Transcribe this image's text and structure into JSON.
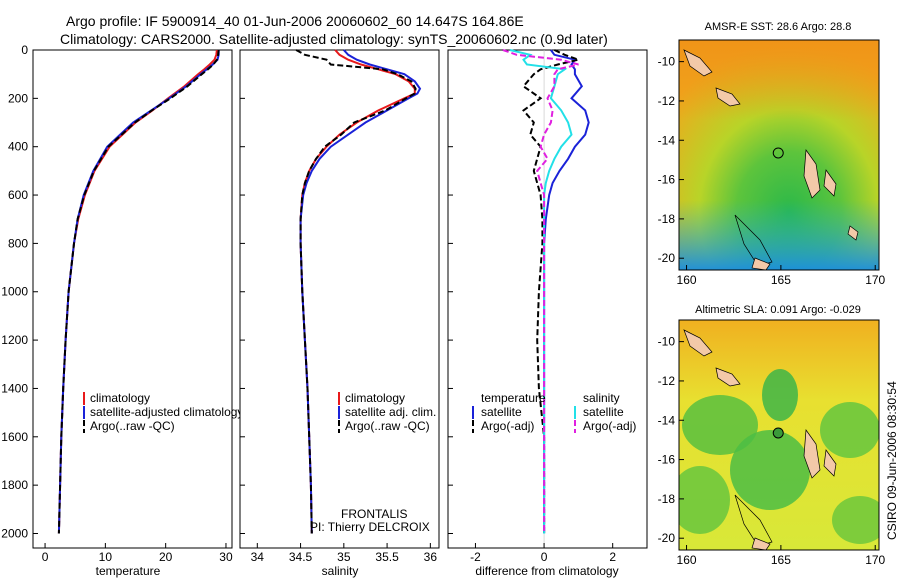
{
  "header": {
    "line1": "Argo profile: IF 5900914_40 01-Jun-2006 20060602_60 14.647S 164.86E",
    "line2": "Climatology: CARS2000. Satellite-adjusted climatology: synTS_20060602.nc (0.9d later)"
  },
  "side_stamp": "CSIRO 09-Jun-2006 08:30:54",
  "colors": {
    "climatology": "#e8191b",
    "satellite": "#1a22d8",
    "argo": "#000000",
    "satellite_diff": "#22e0e8",
    "argo_adj_diff": "#e020e0"
  },
  "chart_data": [
    {
      "type": "line",
      "name": "temperature-profile",
      "xlabel": "temperature",
      "ylabel": "",
      "xlim": [
        -2,
        31
      ],
      "ylim": [
        2060,
        0
      ],
      "xticks": [
        0,
        10,
        20,
        30
      ],
      "yticks": [
        0,
        200,
        400,
        600,
        800,
        1000,
        1200,
        1400,
        1600,
        1800,
        2000
      ],
      "depth": [
        0,
        20,
        40,
        60,
        80,
        100,
        150,
        200,
        250,
        300,
        400,
        500,
        600,
        700,
        800,
        1000,
        1200,
        1400,
        1600,
        1800,
        2000
      ],
      "series": [
        {
          "name": "climatology",
          "values": [
            28.5,
            28.4,
            28.1,
            27.3,
            26.4,
            25.4,
            23.1,
            20.4,
            17.8,
            15.0,
            10.7,
            8.2,
            6.6,
            5.5,
            4.8,
            3.9,
            3.4,
            3.0,
            2.7,
            2.5,
            2.3
          ]
        },
        {
          "name": "satellite-adjusted climatology",
          "values": [
            28.8,
            28.8,
            28.6,
            27.8,
            26.8,
            25.8,
            23.4,
            20.6,
            17.6,
            14.6,
            10.3,
            8.0,
            6.4,
            5.4,
            4.8,
            3.9,
            3.4,
            3.0,
            2.7,
            2.5,
            2.3
          ]
        },
        {
          "name": "Argo(..raw -QC)",
          "values": [
            28.8,
            28.7,
            28.5,
            27.9,
            27.0,
            26.0,
            23.6,
            20.8,
            17.7,
            14.9,
            10.5,
            8.1,
            6.5,
            5.4,
            4.8,
            3.9,
            3.4,
            3.0,
            2.7,
            2.5,
            2.3
          ]
        }
      ],
      "legend": {
        "position": "lower-right",
        "entries": [
          "climatology",
          "satellite-adjusted climatology",
          "Argo(..raw -QC)"
        ]
      }
    },
    {
      "type": "line",
      "name": "salinity-profile",
      "xlabel": "salinity",
      "xlim": [
        33.8,
        36.1
      ],
      "ylim": [
        2060,
        0
      ],
      "xticks": [
        34,
        34.5,
        35,
        35.5,
        36
      ],
      "depth": [
        0,
        20,
        40,
        60,
        80,
        100,
        130,
        160,
        180,
        200,
        250,
        300,
        350,
        400,
        450,
        500,
        550,
        600,
        700,
        800,
        1000,
        1200,
        1400,
        1600,
        1800,
        2000
      ],
      "series": [
        {
          "name": "climatology",
          "values": [
            34.9,
            34.95,
            35.05,
            35.2,
            35.4,
            35.6,
            35.75,
            35.82,
            35.82,
            35.7,
            35.4,
            35.15,
            34.95,
            34.8,
            34.68,
            34.6,
            34.55,
            34.52,
            34.5,
            34.5,
            34.52,
            34.55,
            34.58,
            34.6,
            34.62,
            34.63
          ]
        },
        {
          "name": "satellite adj. clim.",
          "values": [
            35.0,
            35.05,
            35.15,
            35.3,
            35.5,
            35.7,
            35.82,
            35.88,
            35.85,
            35.75,
            35.5,
            35.25,
            35.05,
            34.85,
            34.72,
            34.63,
            34.57,
            34.53,
            34.5,
            34.5,
            34.52,
            34.55,
            34.58,
            34.6,
            34.62,
            34.63
          ]
        },
        {
          "name": "Argo(..raw -QC)",
          "values": [
            34.45,
            34.55,
            34.8,
            34.85,
            35.45,
            35.62,
            35.78,
            35.83,
            35.82,
            35.72,
            35.48,
            35.12,
            34.97,
            34.78,
            34.68,
            34.6,
            34.55,
            34.52,
            34.5,
            34.5,
            34.52,
            34.55,
            34.58,
            34.6,
            34.62,
            34.63
          ]
        }
      ],
      "legend": {
        "position": "lower-right",
        "entries": [
          "climatology",
          "satellite adj. clim.",
          "Argo(..raw -QC)"
        ]
      },
      "annotation": [
        "FRONTALIS",
        "PI: Thierry DELCROIX"
      ]
    },
    {
      "type": "line",
      "name": "difference-profile",
      "xlabel": "difference from climatology",
      "xlim": [
        -2.8,
        3.0
      ],
      "ylim": [
        2060,
        0
      ],
      "xticks": [
        -2,
        0,
        2
      ],
      "depth": [
        0,
        20,
        40,
        60,
        80,
        100,
        150,
        200,
        250,
        300,
        350,
        400,
        450,
        500,
        550,
        600,
        700,
        800,
        1000,
        1200,
        1400,
        1600,
        1800,
        2000
      ],
      "series": [
        {
          "name": "temperature satellite",
          "values": [
            0.2,
            0.3,
            0.9,
            0.8,
            0.9,
            0.9,
            1.1,
            0.8,
            1.2,
            1.3,
            1.2,
            0.9,
            0.7,
            0.45,
            0.25,
            0.15,
            0.05,
            0.0,
            0.0,
            0.0,
            0.0,
            0.0,
            0.0,
            0.0
          ]
        },
        {
          "name": "temperature Argo(-adj)",
          "values": [
            0.3,
            0.6,
            1.0,
            0.4,
            -0.1,
            -0.3,
            -0.6,
            -0.1,
            -0.6,
            -0.3,
            -0.4,
            -0.1,
            -0.2,
            -0.3,
            -0.2,
            -0.1,
            -0.05,
            -0.05,
            -0.15,
            -0.2,
            -0.15,
            0.0,
            0.0,
            0.0
          ]
        },
        {
          "name": "salinity satellite",
          "values": [
            -1.0,
            -0.4,
            -0.6,
            -0.5,
            0.6,
            0.4,
            0.3,
            0.2,
            0.5,
            0.7,
            0.8,
            0.5,
            0.3,
            0.15,
            0.05,
            0.0,
            0.0,
            0.0,
            0.0,
            0.0,
            0.0,
            0.0,
            0.0,
            0.0
          ]
        },
        {
          "name": "salinity Argo(-adj)",
          "values": [
            -1.2,
            -0.8,
            0.5,
            1.0,
            0.4,
            0.3,
            0.3,
            0.1,
            0.25,
            0.2,
            0.0,
            -0.1,
            0.1,
            -0.2,
            -0.1,
            0.0,
            0.0,
            0.0,
            0.0,
            0.0,
            0.0,
            0.0,
            0.0,
            0.0
          ]
        }
      ],
      "legend": {
        "position": "lower-center",
        "temperature_header": "temperature",
        "salinity_header": "salinity",
        "entries": [
          "satellite",
          "Argo(-adj)",
          "satellite",
          "Argo(-adj)"
        ]
      }
    },
    {
      "type": "heatmap",
      "name": "sst-map",
      "title": "AMSR-E SST: 28.6 Argo: 28.8",
      "xlim": [
        159.6,
        170.2
      ],
      "ylim": [
        -20.6,
        -8.9
      ],
      "xticks": [
        160,
        165,
        170
      ],
      "yticks": [
        -10,
        -12,
        -14,
        -16,
        -18,
        -20
      ],
      "profile_location": [
        164.86,
        -14.647
      ]
    },
    {
      "type": "heatmap",
      "name": "sla-map",
      "title": "Altimetric SLA: 0.091 Argo: -0.029",
      "xlim": [
        159.6,
        170.2
      ],
      "ylim": [
        -20.6,
        -8.9
      ],
      "xticks": [
        160,
        165,
        170
      ],
      "yticks": [
        -10,
        -12,
        -14,
        -16,
        -18,
        -20
      ],
      "profile_location": [
        164.86,
        -14.647
      ]
    }
  ]
}
